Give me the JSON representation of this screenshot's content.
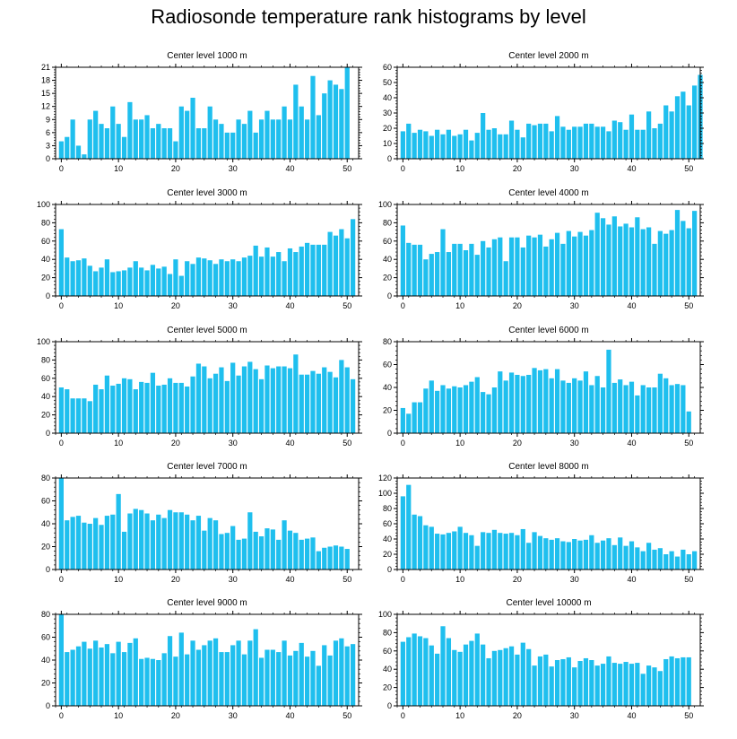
{
  "title": "Radiosonde temperature rank histograms by level",
  "colors": {
    "bar": "#1FBFEE",
    "axis": "#000000",
    "background": "#ffffff"
  },
  "chart_data": [
    {
      "type": "bar",
      "title": "Center level 1000 m",
      "xlim": [
        -1,
        52
      ],
      "ylim": [
        0,
        21
      ],
      "yticks": [
        0,
        3,
        6,
        9,
        12,
        15,
        18,
        21
      ],
      "xticks": [
        0,
        10,
        20,
        30,
        40,
        50
      ],
      "values": [
        4,
        5,
        9,
        3,
        1,
        9,
        11,
        8,
        7,
        12,
        8,
        5,
        13,
        9,
        9,
        10,
        7,
        8,
        7,
        7,
        4,
        12,
        11,
        14,
        7,
        7,
        12,
        9,
        8,
        6,
        6,
        9,
        8,
        11,
        6,
        9,
        11,
        9,
        9,
        12,
        9,
        17,
        12,
        9,
        19,
        10,
        15,
        18,
        17,
        16,
        21
      ]
    },
    {
      "type": "bar",
      "title": "Center level 2000 m",
      "xlim": [
        -1,
        52
      ],
      "ylim": [
        0,
        60
      ],
      "yticks": [
        0,
        10,
        20,
        30,
        40,
        50,
        60
      ],
      "xticks": [
        0,
        10,
        20,
        30,
        40,
        50
      ],
      "values": [
        18,
        23,
        17,
        19,
        18,
        15,
        19,
        16,
        19,
        15,
        16,
        19,
        12,
        17,
        30,
        19,
        20,
        16,
        16,
        25,
        19,
        14,
        23,
        22,
        23,
        23,
        18,
        28,
        21,
        19,
        21,
        21,
        23,
        23,
        21,
        21,
        18,
        25,
        24,
        19,
        29,
        19,
        19,
        31,
        20,
        23,
        35,
        31,
        41,
        44,
        35,
        48,
        55
      ]
    },
    {
      "type": "bar",
      "title": "Center level 3000 m",
      "xlim": [
        -1,
        52
      ],
      "ylim": [
        0,
        100
      ],
      "yticks": [
        0,
        20,
        40,
        60,
        80,
        100
      ],
      "xticks": [
        0,
        10,
        20,
        30,
        40,
        50
      ],
      "values": [
        73,
        42,
        38,
        39,
        41,
        33,
        27,
        31,
        40,
        26,
        27,
        28,
        31,
        38,
        31,
        28,
        34,
        30,
        32,
        24,
        40,
        22,
        38,
        35,
        42,
        41,
        39,
        35,
        40,
        38,
        40,
        38,
        42,
        44,
        55,
        43,
        53,
        43,
        48,
        38,
        52,
        48,
        54,
        58,
        56,
        56,
        56,
        70,
        66,
        73,
        63,
        84
      ]
    },
    {
      "type": "bar",
      "title": "Center level 4000 m",
      "xlim": [
        -1,
        52
      ],
      "ylim": [
        0,
        100
      ],
      "yticks": [
        0,
        20,
        40,
        60,
        80,
        100
      ],
      "xticks": [
        0,
        10,
        20,
        30,
        40,
        50
      ],
      "values": [
        77,
        58,
        56,
        56,
        40,
        46,
        48,
        73,
        48,
        57,
        57,
        50,
        57,
        45,
        60,
        53,
        62,
        64,
        38,
        64,
        64,
        53,
        66,
        64,
        67,
        54,
        62,
        69,
        57,
        71,
        65,
        70,
        66,
        72,
        91,
        85,
        78,
        87,
        76,
        79,
        75,
        86,
        73,
        75,
        57,
        71,
        68,
        72,
        94,
        82,
        74,
        93
      ]
    },
    {
      "type": "bar",
      "title": "Center level 5000 m",
      "xlim": [
        -1,
        52
      ],
      "ylim": [
        0,
        100
      ],
      "yticks": [
        0,
        20,
        40,
        60,
        80,
        100
      ],
      "xticks": [
        0,
        10,
        20,
        30,
        40,
        50
      ],
      "values": [
        50,
        48,
        38,
        38,
        38,
        35,
        53,
        48,
        63,
        52,
        54,
        60,
        59,
        48,
        56,
        55,
        66,
        52,
        53,
        60,
        55,
        55,
        51,
        62,
        76,
        73,
        60,
        65,
        72,
        57,
        77,
        63,
        73,
        78,
        70,
        59,
        74,
        71,
        73,
        73,
        71,
        86,
        64,
        64,
        68,
        65,
        72,
        67,
        61,
        80,
        72,
        59
      ]
    },
    {
      "type": "bar",
      "title": "Center level 6000 m",
      "xlim": [
        -1,
        52
      ],
      "ylim": [
        0,
        80
      ],
      "yticks": [
        0,
        20,
        40,
        60,
        80
      ],
      "xticks": [
        0,
        10,
        20,
        30,
        40,
        50
      ],
      "values": [
        22,
        17,
        27,
        27,
        39,
        46,
        37,
        42,
        39,
        41,
        40,
        42,
        45,
        49,
        36,
        34,
        40,
        54,
        46,
        53,
        51,
        50,
        51,
        57,
        55,
        56,
        48,
        56,
        46,
        44,
        48,
        46,
        54,
        42,
        50,
        40,
        73,
        44,
        47,
        42,
        45,
        33,
        42,
        40,
        40,
        52,
        48,
        42,
        43,
        42,
        19
      ]
    },
    {
      "type": "bar",
      "title": "Center level 7000 m",
      "xlim": [
        -1,
        52
      ],
      "ylim": [
        0,
        80
      ],
      "yticks": [
        0,
        20,
        40,
        60,
        80
      ],
      "xticks": [
        0,
        10,
        20,
        30,
        40,
        50
      ],
      "values": [
        80,
        43,
        46,
        47,
        41,
        40,
        45,
        39,
        47,
        48,
        66,
        33,
        49,
        53,
        52,
        49,
        43,
        48,
        45,
        52,
        50,
        50,
        48,
        43,
        47,
        34,
        45,
        43,
        31,
        32,
        38,
        26,
        27,
        50,
        33,
        29,
        36,
        35,
        26,
        43,
        34,
        32,
        26,
        27,
        28,
        16,
        19,
        20,
        21,
        20,
        18
      ]
    },
    {
      "type": "bar",
      "title": "Center level 8000 m",
      "xlim": [
        -1,
        52
      ],
      "ylim": [
        0,
        120
      ],
      "yticks": [
        0,
        20,
        40,
        60,
        80,
        100,
        120
      ],
      "xticks": [
        0,
        10,
        20,
        30,
        40,
        50
      ],
      "values": [
        96,
        111,
        72,
        70,
        58,
        56,
        47,
        46,
        48,
        50,
        56,
        48,
        45,
        31,
        49,
        48,
        52,
        48,
        47,
        48,
        45,
        53,
        35,
        49,
        44,
        41,
        39,
        41,
        37,
        36,
        40,
        38,
        39,
        45,
        35,
        38,
        41,
        32,
        42,
        31,
        37,
        29,
        24,
        35,
        26,
        28,
        20,
        24,
        17,
        26,
        20,
        24
      ]
    },
    {
      "type": "bar",
      "title": "Center level 9000 m",
      "xlim": [
        -1,
        52
      ],
      "ylim": [
        0,
        80
      ],
      "yticks": [
        0,
        20,
        40,
        60,
        80
      ],
      "xticks": [
        0,
        10,
        20,
        30,
        40,
        50
      ],
      "values": [
        80,
        47,
        49,
        52,
        56,
        50,
        57,
        51,
        54,
        46,
        56,
        47,
        55,
        59,
        41,
        42,
        41,
        40,
        46,
        61,
        43,
        64,
        45,
        57,
        49,
        53,
        57,
        59,
        47,
        47,
        53,
        57,
        45,
        57,
        67,
        42,
        49,
        49,
        47,
        57,
        44,
        48,
        55,
        43,
        48,
        35,
        53,
        44,
        57,
        59,
        52,
        54
      ]
    },
    {
      "type": "bar",
      "title": "Center level 10000 m",
      "xlim": [
        -1,
        52
      ],
      "ylim": [
        0,
        100
      ],
      "yticks": [
        0,
        20,
        40,
        60,
        80,
        100
      ],
      "xticks": [
        0,
        10,
        20,
        30,
        40,
        50
      ],
      "values": [
        70,
        75,
        79,
        76,
        74,
        66,
        57,
        87,
        74,
        61,
        59,
        67,
        71,
        79,
        67,
        52,
        60,
        61,
        63,
        65,
        56,
        69,
        62,
        44,
        54,
        56,
        43,
        50,
        51,
        53,
        42,
        49,
        52,
        50,
        44,
        46,
        54,
        47,
        46,
        48,
        46,
        47,
        35,
        44,
        42,
        38,
        51,
        54,
        52,
        53,
        53
      ]
    }
  ]
}
